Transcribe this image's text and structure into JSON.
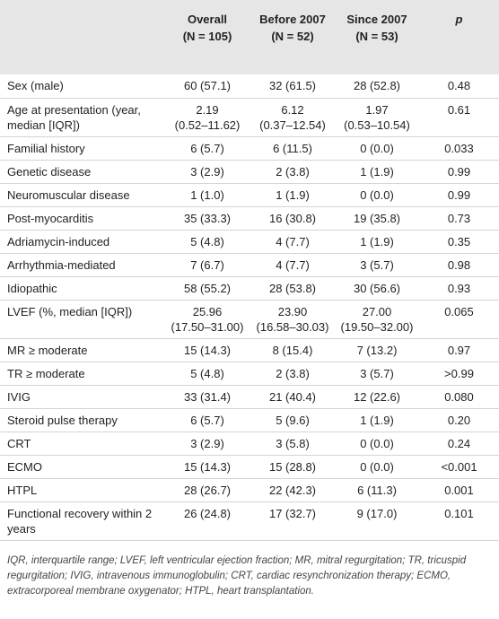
{
  "table": {
    "columns": [
      {
        "label": "",
        "n": ""
      },
      {
        "label": "Overall",
        "n": "(N = 105)"
      },
      {
        "label": "Before 2007",
        "n": "(N = 52)"
      },
      {
        "label": "Since 2007",
        "n": "(N = 53)"
      },
      {
        "label": "p",
        "n": ""
      }
    ],
    "rows": [
      [
        "Sex (male)",
        "60 (57.1)",
        "32 (61.5)",
        "28 (52.8)",
        "0.48"
      ],
      [
        "Age at presentation (year, median [IQR])",
        [
          "2.19",
          "(0.52–11.62)"
        ],
        [
          "6.12",
          "(0.37–12.54)"
        ],
        [
          "1.97",
          "(0.53–10.54)"
        ],
        "0.61"
      ],
      [
        "Familial history",
        "6 (5.7)",
        "6 (11.5)",
        "0 (0.0)",
        "0.033"
      ],
      [
        "Genetic disease",
        "3 (2.9)",
        "2 (3.8)",
        "1 (1.9)",
        "0.99"
      ],
      [
        "Neuromuscular disease",
        "1 (1.0)",
        "1 (1.9)",
        "0 (0.0)",
        "0.99"
      ],
      [
        "Post-myocarditis",
        "35 (33.3)",
        "16 (30.8)",
        "19 (35.8)",
        "0.73"
      ],
      [
        "Adriamycin-induced",
        "5 (4.8)",
        "4 (7.7)",
        "1 (1.9)",
        "0.35"
      ],
      [
        "Arrhythmia-mediated",
        "7 (6.7)",
        "4 (7.7)",
        "3 (5.7)",
        "0.98"
      ],
      [
        "Idiopathic",
        "58 (55.2)",
        "28 (53.8)",
        "30 (56.6)",
        "0.93"
      ],
      [
        "LVEF (%, median [IQR])",
        [
          "25.96",
          "(17.50–31.00)"
        ],
        [
          "23.90",
          "(16.58–30.03)"
        ],
        [
          "27.00",
          "(19.50–32.00)"
        ],
        "0.065"
      ],
      [
        "MR ≥ moderate",
        "15 (14.3)",
        "8 (15.4)",
        "7 (13.2)",
        "0.97"
      ],
      [
        "TR ≥ moderate",
        "5 (4.8)",
        "2 (3.8)",
        "3 (5.7)",
        ">0.99"
      ],
      [
        "IVIG",
        "33 (31.4)",
        "21 (40.4)",
        "12 (22.6)",
        "0.080"
      ],
      [
        "Steroid pulse therapy",
        "6 (5.7)",
        "5 (9.6)",
        "1 (1.9)",
        "0.20"
      ],
      [
        "CRT",
        "3 (2.9)",
        "3 (5.8)",
        "0 (0.0)",
        "0.24"
      ],
      [
        "ECMO",
        "15 (14.3)",
        "15 (28.8)",
        "0 (0.0)",
        "<0.001"
      ],
      [
        "HTPL",
        "28 (26.7)",
        "22 (42.3)",
        "6 (11.3)",
        "0.001"
      ],
      [
        "Functional recovery within 2 years",
        "26 (24.8)",
        "17 (32.7)",
        "9 (17.0)",
        "0.101"
      ]
    ],
    "footnote": "IQR, interquartile range; LVEF, left ventricular ejection fraction; MR, mitral regurgitation; TR, tricuspid regurgitation; IVIG, intravenous immunoglobulin; CRT, cardiac resynchronization therapy; ECMO, extracorporeal membrane oxygenator; HTPL, heart transplantation."
  }
}
